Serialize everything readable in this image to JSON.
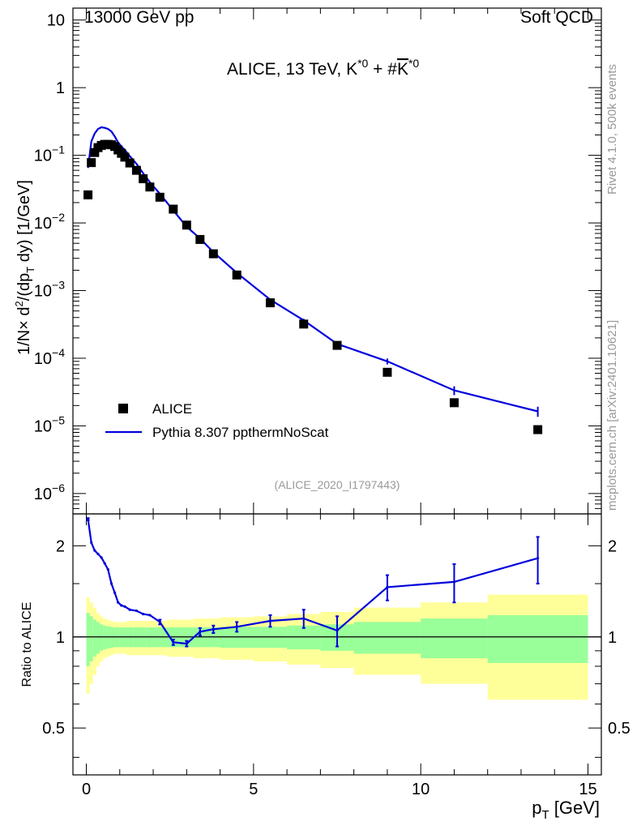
{
  "header": {
    "left": "13000 GeV pp",
    "right": "Soft QCD"
  },
  "side_labels": {
    "rivet": "Rivet 4.1.0,  500k events",
    "mcplots": "mcplots.cern.ch [arXiv:2401.10621]"
  },
  "chart_data": {
    "type": "scatter",
    "title": "ALICE, 13 TeV, K*0 + #K̄*0",
    "title_parts": {
      "base": "ALICE, 13 TeV, K",
      "sup1": "*0",
      "mid": " + #",
      "k": "K",
      "sup2": "*0"
    },
    "analysis_id": "(ALICE_2020_I1797443)",
    "xlabel": "p_T [GeV]",
    "xlabel_parts": {
      "main": "p",
      "sub": "T",
      "unit": " [GeV]"
    },
    "ylabel": "1/N × d²/(dp_T dy) [1/GeV]",
    "ylabel_parts": {
      "a": "1/N",
      "times": "×",
      "d": " d",
      "sq": "2",
      "b": "/(dp",
      "t": "T",
      "c": " dy) [1/GeV]"
    },
    "ratio_ylabel": "Ratio to ALICE",
    "xlim": [
      -0.4,
      15.4
    ],
    "ylim": [
      5e-07,
      15
    ],
    "ratio_ylim": [
      0.35,
      2.55
    ],
    "x_ticks": [
      0,
      5,
      10,
      15
    ],
    "x_tick_labels": [
      "0",
      "5",
      "10",
      "15"
    ],
    "y_ticks": [
      {
        "value": 10,
        "base": "10",
        "exp": ""
      },
      {
        "value": 1,
        "base": "1",
        "exp": ""
      },
      {
        "value": 0.1,
        "base": "10",
        "exp": "−1"
      },
      {
        "value": 0.01,
        "base": "10",
        "exp": "−2"
      },
      {
        "value": 0.001,
        "base": "10",
        "exp": "−3"
      },
      {
        "value": 0.0001,
        "base": "10",
        "exp": "−4"
      },
      {
        "value": 1e-05,
        "base": "10",
        "exp": "−5"
      },
      {
        "value": 1e-06,
        "base": "10",
        "exp": "−6"
      }
    ],
    "ratio_ticks": [
      {
        "value": 2,
        "label": "2"
      },
      {
        "value": 1,
        "label": "1"
      },
      {
        "value": 0.5,
        "label": "0.5"
      }
    ],
    "legend": [
      {
        "name": "ALICE",
        "style": "marker",
        "color": "#000000"
      },
      {
        "name": "Pythia 8.307 ppthermNoScat",
        "style": "line",
        "color": "#0000dd"
      }
    ],
    "series": [
      {
        "name": "ALICE",
        "color": "#000000",
        "x": [
          0.05,
          0.15,
          0.25,
          0.35,
          0.45,
          0.55,
          0.65,
          0.75,
          0.85,
          0.95,
          1.05,
          1.15,
          1.3,
          1.5,
          1.7,
          1.9,
          2.2,
          2.6,
          3.0,
          3.4,
          3.8,
          4.5,
          5.5,
          6.5,
          7.5,
          9.0,
          11.0,
          13.5
        ],
        "y": [
          0.026,
          0.078,
          0.11,
          0.13,
          0.14,
          0.145,
          0.145,
          0.143,
          0.135,
          0.12,
          0.107,
          0.094,
          0.077,
          0.06,
          0.045,
          0.034,
          0.024,
          0.016,
          0.0093,
          0.0057,
          0.0035,
          0.0017,
          0.00066,
          0.00032,
          0.000155,
          6.2e-05,
          2.2e-05,
          8.8e-06
        ]
      },
      {
        "name": "Pythia 8.307 ppthermNoScat",
        "color": "#0000dd",
        "x": [
          0.05,
          0.15,
          0.25,
          0.35,
          0.45,
          0.55,
          0.65,
          0.75,
          0.85,
          0.95,
          1.05,
          1.15,
          1.3,
          1.5,
          1.7,
          1.9,
          2.2,
          2.6,
          3.0,
          3.4,
          3.8,
          4.5,
          5.5,
          6.5,
          7.5,
          9.0,
          11.0,
          13.5
        ],
        "y": [
          0.065,
          0.16,
          0.21,
          0.245,
          0.26,
          0.255,
          0.245,
          0.225,
          0.19,
          0.155,
          0.135,
          0.12,
          0.097,
          0.075,
          0.054,
          0.04,
          0.027,
          0.0153,
          0.0088,
          0.0059,
          0.0037,
          0.00183,
          0.000735,
          0.000363,
          0.000163,
          9e-05,
          3.35e-05,
          1.64e-05
        ],
        "yerr": [
          0,
          0,
          0,
          0,
          0,
          0,
          0,
          0,
          0,
          0,
          0,
          0,
          0,
          0,
          0,
          0,
          0,
          0,
          0,
          0,
          0,
          0,
          2e-05,
          2e-05,
          8e-06,
          9e-06,
          5e-06,
          2.8e-06
        ]
      }
    ],
    "ratio": {
      "x": [
        0.05,
        0.15,
        0.25,
        0.35,
        0.45,
        0.55,
        0.65,
        0.75,
        0.85,
        0.95,
        1.05,
        1.15,
        1.3,
        1.5,
        1.7,
        1.9,
        2.2,
        2.6,
        3.0,
        3.4,
        3.8,
        4.5,
        5.5,
        6.5,
        7.5,
        9.0,
        11.0,
        13.5
      ],
      "y": [
        2.45,
        2.05,
        1.93,
        1.88,
        1.83,
        1.75,
        1.67,
        1.5,
        1.4,
        1.3,
        1.27,
        1.26,
        1.23,
        1.22,
        1.19,
        1.18,
        1.12,
        0.96,
        0.95,
        1.04,
        1.06,
        1.08,
        1.13,
        1.15,
        1.05,
        1.46,
        1.52,
        1.82
      ],
      "err": [
        0.02,
        0.01,
        0.01,
        0.01,
        0.01,
        0.01,
        0.01,
        0.01,
        0.01,
        0.01,
        0.01,
        0.01,
        0.01,
        0.01,
        0.01,
        0.01,
        0.02,
        0.02,
        0.02,
        0.03,
        0.03,
        0.04,
        0.05,
        0.08,
        0.12,
        0.14,
        0.22,
        0.32
      ]
    },
    "bands": {
      "edges": [
        0,
        0.1,
        0.2,
        0.3,
        0.4,
        0.5,
        0.6,
        0.7,
        0.8,
        0.9,
        1.0,
        1.1,
        1.2,
        1.4,
        1.6,
        1.8,
        2.0,
        2.4,
        2.8,
        3.2,
        3.6,
        4.0,
        5.0,
        6.0,
        7.0,
        8.0,
        10.0,
        12.0,
        15.0
      ],
      "green": [
        0.2,
        0.17,
        0.14,
        0.12,
        0.1,
        0.09,
        0.085,
        0.08,
        0.075,
        0.075,
        0.075,
        0.075,
        0.075,
        0.075,
        0.075,
        0.075,
        0.075,
        0.075,
        0.075,
        0.075,
        0.075,
        0.08,
        0.08,
        0.09,
        0.1,
        0.12,
        0.15,
        0.18
      ],
      "yellow": [
        0.35,
        0.3,
        0.25,
        0.2,
        0.17,
        0.15,
        0.14,
        0.13,
        0.12,
        0.12,
        0.12,
        0.12,
        0.13,
        0.13,
        0.13,
        0.13,
        0.13,
        0.14,
        0.14,
        0.15,
        0.15,
        0.16,
        0.17,
        0.19,
        0.21,
        0.25,
        0.3,
        0.38
      ]
    }
  }
}
